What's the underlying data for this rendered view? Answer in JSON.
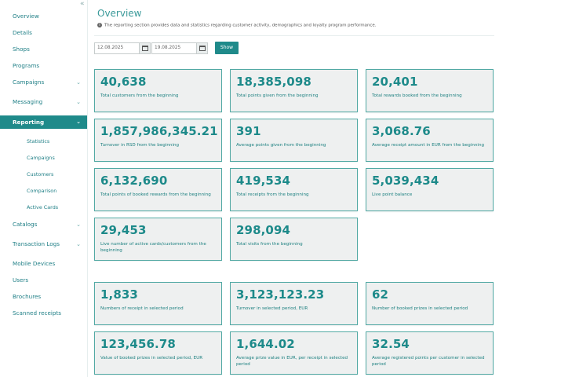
{
  "sidebar": {
    "items": [
      {
        "label": "Overview"
      },
      {
        "label": "Details"
      },
      {
        "label": "Shops"
      },
      {
        "label": "Programs"
      },
      {
        "label": "Campaigns"
      },
      {
        "label": "Messaging"
      },
      {
        "label": "Reporting"
      },
      {
        "label": "Catalogs"
      },
      {
        "label": "Transaction Logs"
      },
      {
        "label": "Mobile Devices"
      },
      {
        "label": "Users"
      },
      {
        "label": "Brochures"
      },
      {
        "label": "Scanned receipts"
      }
    ],
    "sub_items": [
      {
        "label": "Statistics"
      },
      {
        "label": "Campaigns"
      },
      {
        "label": "Customers"
      },
      {
        "label": "Comparison"
      },
      {
        "label": "Active Cards"
      }
    ],
    "collapse_icon": "«"
  },
  "page": {
    "title": "Overview",
    "description": "The reporting section provides data and statistics regarding customer activity, demographics and loyalty program performance."
  },
  "filters": {
    "date_from": "12.08.2025",
    "date_to": "19.08.2025",
    "show_label": "Show"
  },
  "cards": [
    {
      "value": "40,638",
      "label": "Total customers from the beginning"
    },
    {
      "value": "18,385,098",
      "label": "Total points given from the beginning"
    },
    {
      "value": "20,401",
      "label": "Total rewards booked from the beginning"
    },
    {
      "value": "1,857,986,345.21",
      "label": "Turnover in RSD from the beginning"
    },
    {
      "value": "391",
      "label": "Average points given from the beginning"
    },
    {
      "value": "3,068.76",
      "label": "Average receipt amount in EUR from the beginning"
    },
    {
      "value": "6,132,690",
      "label": "Total points of booked rewards from the beginning"
    },
    {
      "value": "419,534",
      "label": "Total receipts from the beginning"
    },
    {
      "value": "5,039,434",
      "label": "Live point balance"
    },
    {
      "value": "29,453",
      "label": "Live number of active cards/customers from the beginning"
    },
    {
      "value": "298,094",
      "label": "Total visits from the beginning"
    },
    {
      "value": "1,833",
      "label": "Numbers of receipt in selected period"
    },
    {
      "value": "3,123,123.23",
      "label": "Turnover in selected period, EUR"
    },
    {
      "value": "62",
      "label": "Number of booked prizes in selected period"
    },
    {
      "value": "123,456.78",
      "label": "Value of booked prizes in selected period, EUR"
    },
    {
      "value": "1,644.02",
      "label": "Average prize value in EUR, per receipt in selected period"
    },
    {
      "value": "32.54",
      "label": "Average registered points per customer in selected period"
    }
  ],
  "icons": {
    "chevron": "chevron-down-icon",
    "calendar": "calendar-icon",
    "info": "info-icon"
  },
  "colors": {
    "accent": "#1f8a8a",
    "card_bg": "#eef0f0",
    "card_border": "#52a9a4"
  }
}
